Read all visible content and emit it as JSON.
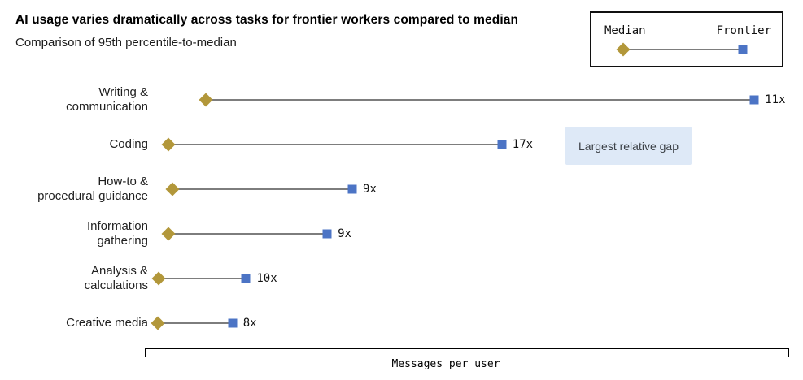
{
  "colors": {
    "median": "#b2973a",
    "frontier": "#4c74c5",
    "connector": "#7d7d7d",
    "annotation_bg": "#dee9f7",
    "legend_border": "#101010"
  },
  "chart_data": {
    "type": "dumbbell",
    "title": "AI usage varies dramatically across tasks for frontier workers compared to median",
    "subtitle": "Comparison of 95th percentile-to-median",
    "xlabel": "Messages per user",
    "categories": [
      "Writing & communication",
      "Coding",
      "How-to & procedural guidance",
      "Information gathering",
      "Analysis & calculations",
      "Creative media"
    ],
    "category_label_lines": [
      [
        "Writing &",
        "communication"
      ],
      [
        "Coding"
      ],
      [
        "How-to &",
        "procedural guidance"
      ],
      [
        "Information",
        "gathering"
      ],
      [
        "Analysis &",
        "calculations"
      ],
      [
        "Creative media"
      ]
    ],
    "ratio_labels": [
      "11x",
      "17x",
      "9x",
      "9x",
      "10x",
      "8x"
    ],
    "series": [
      {
        "name": "Median",
        "marker": "diamond",
        "color": "#b2973a",
        "positions_pct_of_axis": [
          9.5,
          3.7,
          4.3,
          3.7,
          2.1,
          2.0
        ]
      },
      {
        "name": "Frontier",
        "marker": "square",
        "color": "#4c74c5",
        "positions_pct_of_axis": [
          94.6,
          55.4,
          32.2,
          28.3,
          15.7,
          13.6
        ]
      }
    ],
    "annotation": {
      "text": "Largest relative gap",
      "attached_to": "Coding"
    },
    "legend": {
      "position": "top-right",
      "entries": [
        "Median",
        "Frontier"
      ]
    },
    "axis": {
      "ticks_visible": false,
      "gridlines": false
    }
  }
}
